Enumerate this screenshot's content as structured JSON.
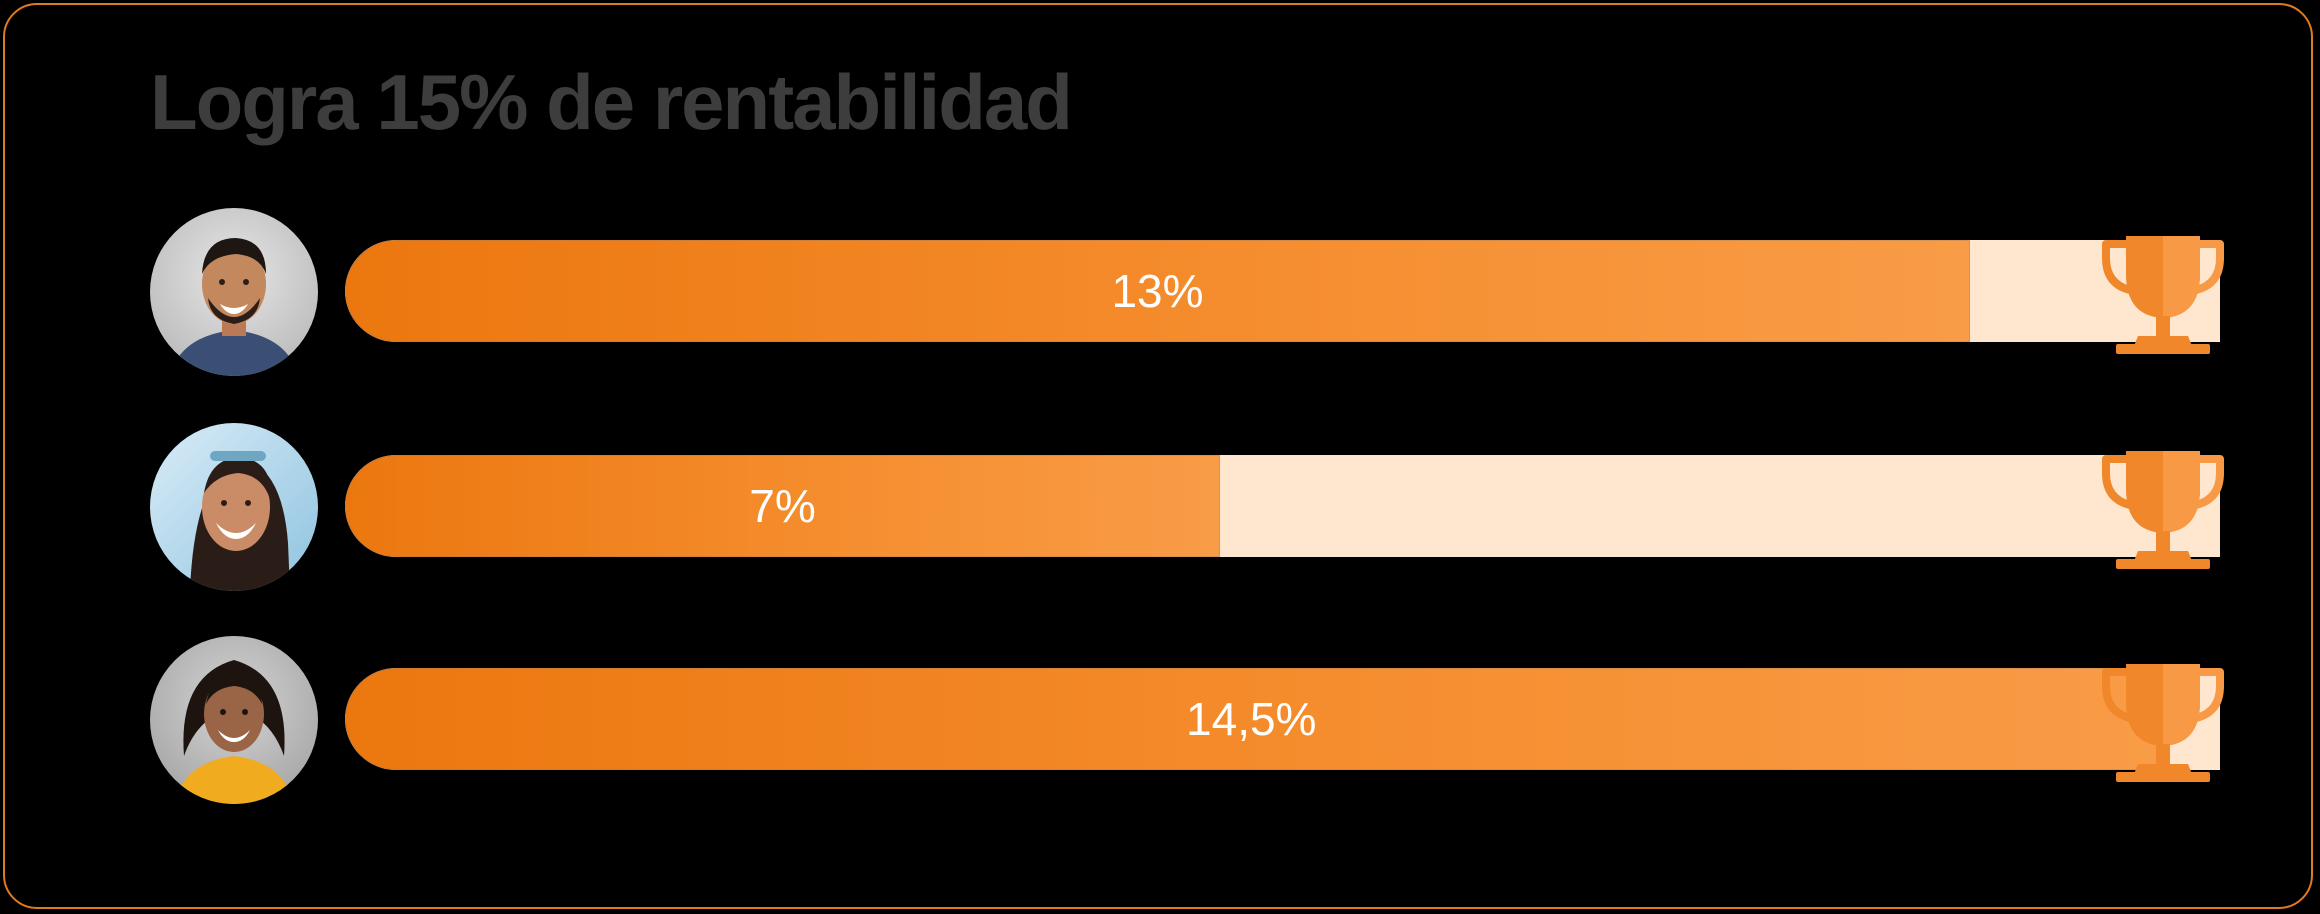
{
  "title": "Logra 15% de rentabilidad",
  "goal_percent": 15,
  "colors": {
    "accent": "#EE7A12",
    "track": "#FFE6CF",
    "title": "#3D3D3D",
    "border": "#E07A20"
  },
  "rows": [
    {
      "person": "man-avatar",
      "value": 13,
      "label": "13%",
      "icon": "trophy-icon"
    },
    {
      "person": "woman-avatar",
      "value": 7,
      "label": "7%",
      "icon": "trophy-icon"
    },
    {
      "person": "curly-hair-woman-avatar",
      "value": 14.5,
      "label": "14,5%",
      "icon": "trophy-icon"
    }
  ]
}
